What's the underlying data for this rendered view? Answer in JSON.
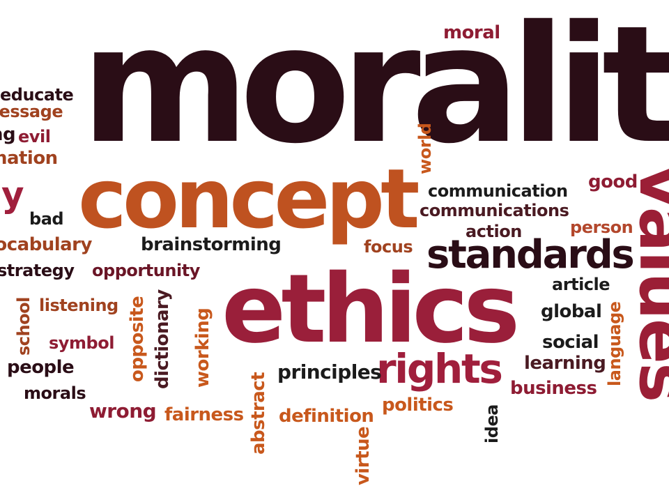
{
  "words": {
    "morality": "morality",
    "concept": "concept",
    "ethics": "ethics",
    "values": "values",
    "standards": "standards",
    "rights": "rights",
    "moral": "moral",
    "educate": "educate",
    "message": "message",
    "ng": "ng",
    "evil": "evil",
    "nation": "nation",
    "y": "y",
    "bad": "bad",
    "vocabulary": "vocabulary",
    "strategy": "strategy",
    "school": "school",
    "listening": "listening",
    "symbol": "symbol",
    "people": "people",
    "morals": "morals",
    "wrong": "wrong",
    "fairness": "fairness",
    "definition": "definition",
    "abstract": "abstract",
    "virtue": "virtue",
    "politics": "politics",
    "idea": "idea",
    "principles": "principles",
    "opposite": "opposite",
    "dictionary": "dictionary",
    "working": "working",
    "opportunity": "opportunity",
    "brainstorming": "brainstorming",
    "focus": "focus",
    "world": "world",
    "communication": "communication",
    "communications": "communications",
    "good": "good",
    "action": "action",
    "person": "person",
    "article": "article",
    "global": "global",
    "social": "social",
    "learning": "learning",
    "business": "business",
    "language": "language"
  }
}
